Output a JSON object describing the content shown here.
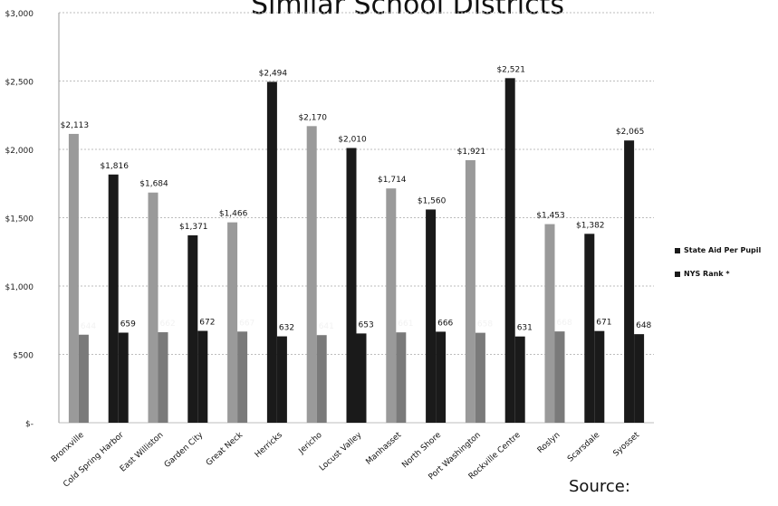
{
  "chart_data": {
    "type": "bar",
    "title": "Similar School Districts",
    "categories": [
      "Bronxville",
      "Cold Spring Harbor",
      "East Williston",
      "Garden City",
      "Great Neck",
      "Herricks",
      "Jericho",
      "Locust Valley",
      "Manhasset",
      "North Shore",
      "Port Washington",
      "Rockville Centre",
      "Roslyn",
      "Scarsdale",
      "Syosset"
    ],
    "series": [
      {
        "name": "State Aid Per Pupil",
        "values": [
          2113,
          1816,
          1684,
          1371,
          1466,
          2494,
          2170,
          2010,
          1714,
          1560,
          1921,
          2521,
          1453,
          1382,
          2065
        ],
        "labels": [
          "$2,113",
          "$1,816",
          "$1,684",
          "$1,371",
          "$1,466",
          "$2,494",
          "$2,170",
          "$2,010",
          "$1,714",
          "$1,560",
          "$1,921",
          "$2,521",
          "$1,453",
          "$1,382",
          "$2,065"
        ]
      },
      {
        "name": "NYS Rank *",
        "values": [
          644,
          659,
          662,
          672,
          667,
          632,
          641,
          653,
          661,
          666,
          658,
          631,
          668,
          671,
          648
        ],
        "labels": [
          "644",
          "659",
          "662",
          "672",
          "667",
          "632",
          "641",
          "653",
          "661",
          "666",
          "658",
          "631",
          "668",
          "671",
          "648"
        ]
      }
    ],
    "bar_style": [
      "light",
      "dark",
      "light",
      "dark",
      "light",
      "dark",
      "light",
      "dark",
      "light",
      "dark",
      "light",
      "dark",
      "light",
      "dark",
      "dark"
    ],
    "ylim": [
      0,
      3000
    ],
    "yticks": [
      0,
      500,
      1000,
      1500,
      2000,
      2500,
      3000
    ],
    "ytick_labels": [
      "$-",
      "$500",
      "$1,000",
      "$1,500",
      "$2,000",
      "$2,500",
      "$3,000"
    ],
    "grid": true,
    "legend_position": "right"
  },
  "source_label": "Source:",
  "colors": {
    "light": "#9a9a9a",
    "dark": "#1a1a1a",
    "grid": "#bdbdbd"
  }
}
